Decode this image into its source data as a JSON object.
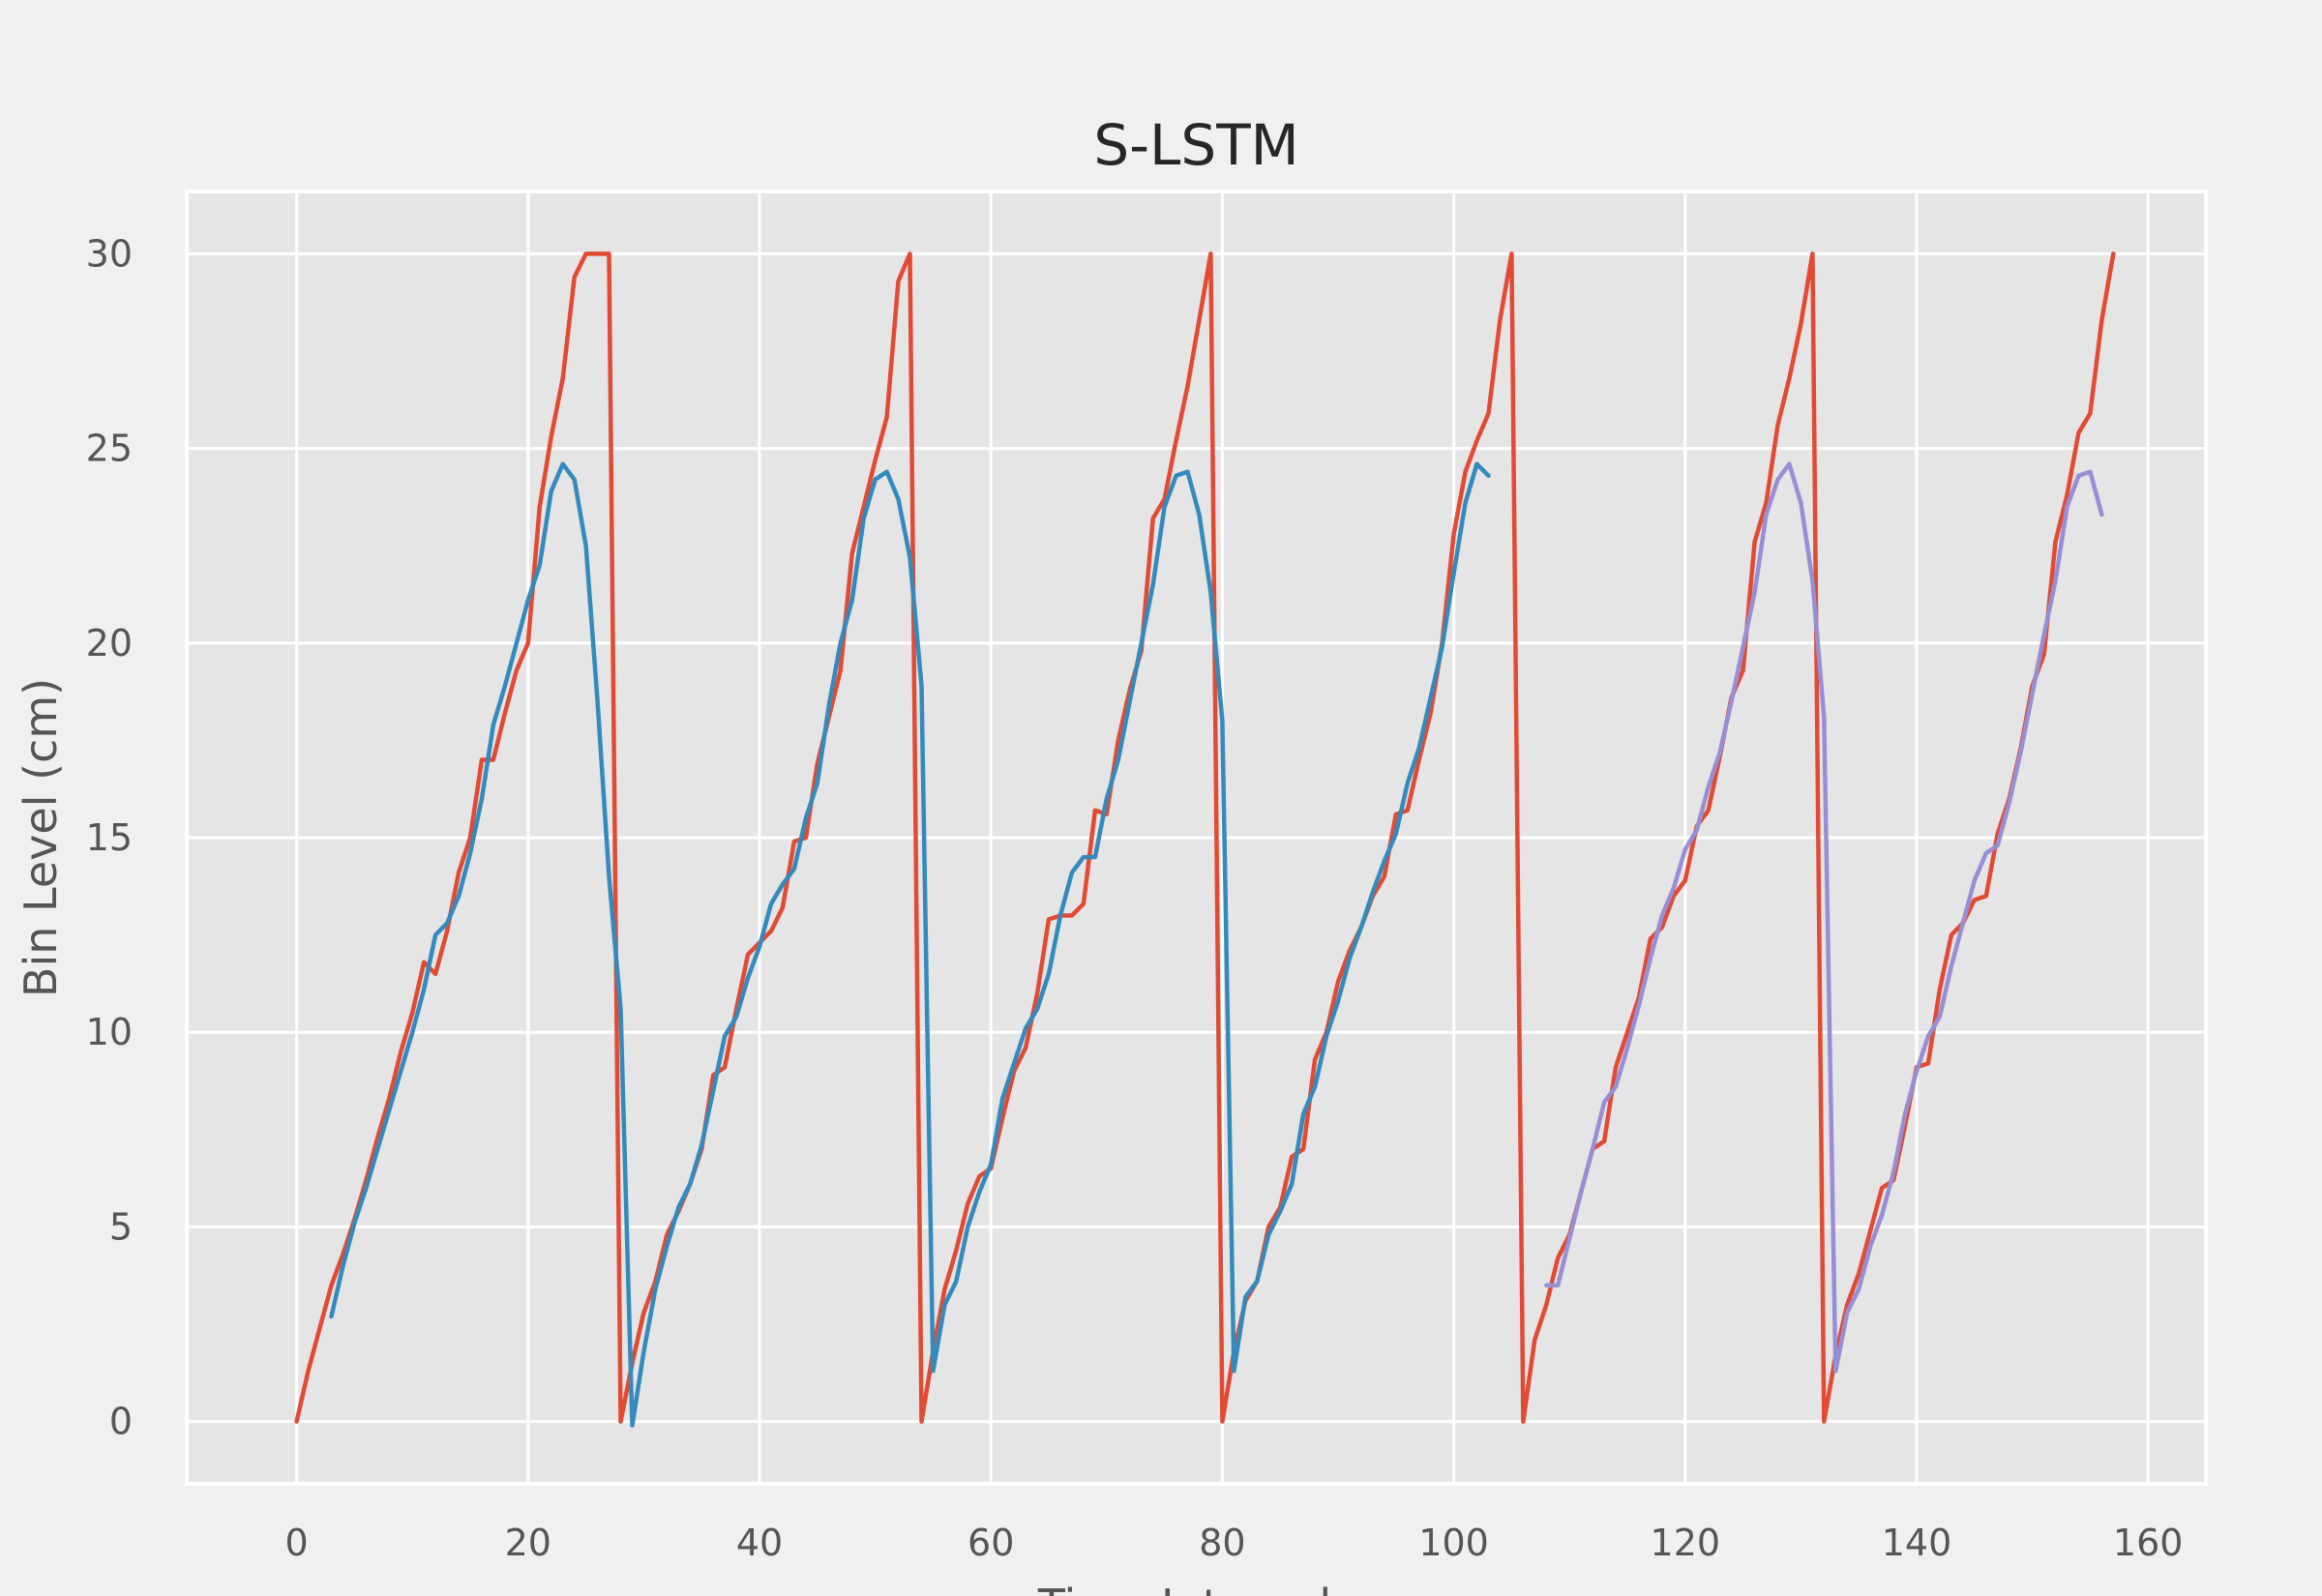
{
  "chart_data": {
    "type": "line",
    "title": "S-LSTM",
    "xlabel": "Time Intervals",
    "ylabel": "Bin Level (cm)",
    "xlim": [
      -9.5,
      165
    ],
    "ylim": [
      -1.6,
      31.6
    ],
    "xticks": [
      0,
      20,
      40,
      60,
      80,
      100,
      120,
      140,
      160
    ],
    "yticks": [
      0,
      5,
      10,
      15,
      20,
      25,
      30
    ],
    "grid": true,
    "legend": "none",
    "series": [
      {
        "color": "#e24a33",
        "points": [
          [
            0,
            0
          ],
          [
            1,
            1.3
          ],
          [
            2,
            2.4
          ],
          [
            3,
            3.5
          ],
          [
            4,
            4.3
          ],
          [
            5,
            5.2
          ],
          [
            6,
            6.2
          ],
          [
            7,
            7.3
          ],
          [
            8,
            8.3
          ],
          [
            9,
            9.5
          ],
          [
            10,
            10.5
          ],
          [
            11,
            11.8
          ],
          [
            12,
            11.5
          ],
          [
            13,
            12.6
          ],
          [
            14,
            14.1
          ],
          [
            15,
            15.0
          ],
          [
            16,
            17.0
          ],
          [
            17,
            17.0
          ],
          [
            18,
            18.2
          ],
          [
            19,
            19.3
          ],
          [
            20,
            20.0
          ],
          [
            21,
            23.5
          ],
          [
            22,
            25.3
          ],
          [
            23,
            26.8
          ],
          [
            24,
            29.4
          ],
          [
            25,
            30.0
          ],
          [
            26,
            30.0
          ],
          [
            27,
            30.0
          ],
          [
            28,
            0
          ],
          [
            29,
            1.5
          ],
          [
            30,
            2.8
          ],
          [
            31,
            3.6
          ],
          [
            32,
            4.8
          ],
          [
            33,
            5.4
          ],
          [
            34,
            6.1
          ],
          [
            35,
            7.0
          ],
          [
            36,
            8.9
          ],
          [
            37,
            9.1
          ],
          [
            38,
            10.6
          ],
          [
            39,
            12.0
          ],
          [
            40,
            12.3
          ],
          [
            41,
            12.6
          ],
          [
            42,
            13.2
          ],
          [
            43,
            14.9
          ],
          [
            44,
            15.0
          ],
          [
            45,
            16.9
          ],
          [
            46,
            18.1
          ],
          [
            47,
            19.3
          ],
          [
            48,
            22.3
          ],
          [
            49,
            23.5
          ],
          [
            50,
            24.7
          ],
          [
            51,
            25.8
          ],
          [
            52,
            29.3
          ],
          [
            53,
            30.0
          ],
          [
            54,
            0
          ],
          [
            55,
            1.8
          ],
          [
            56,
            3.4
          ],
          [
            57,
            4.4
          ],
          [
            58,
            5.6
          ],
          [
            59,
            6.3
          ],
          [
            60,
            6.5
          ],
          [
            61,
            7.8
          ],
          [
            62,
            9.0
          ],
          [
            63,
            9.6
          ],
          [
            64,
            11.0
          ],
          [
            65,
            12.9
          ],
          [
            66,
            13.0
          ],
          [
            67,
            13.0
          ],
          [
            68,
            13.3
          ],
          [
            69,
            15.7
          ],
          [
            70,
            15.6
          ],
          [
            71,
            17.5
          ],
          [
            72,
            18.8
          ],
          [
            73,
            19.8
          ],
          [
            74,
            23.2
          ],
          [
            75,
            23.7
          ],
          [
            76,
            25.2
          ],
          [
            77,
            26.6
          ],
          [
            78,
            28.3
          ],
          [
            79,
            30.0
          ],
          [
            80,
            0
          ],
          [
            81,
            1.8
          ],
          [
            82,
            3.1
          ],
          [
            83,
            3.6
          ],
          [
            84,
            5.0
          ],
          [
            85,
            5.5
          ],
          [
            86,
            6.8
          ],
          [
            87,
            7.0
          ],
          [
            88,
            9.3
          ],
          [
            89,
            10.0
          ],
          [
            90,
            11.3
          ],
          [
            91,
            12.1
          ],
          [
            92,
            12.7
          ],
          [
            93,
            13.5
          ],
          [
            94,
            14.0
          ],
          [
            95,
            15.6
          ],
          [
            96,
            15.7
          ],
          [
            97,
            17.0
          ],
          [
            98,
            18.2
          ],
          [
            99,
            20.0
          ],
          [
            100,
            22.8
          ],
          [
            101,
            24.4
          ],
          [
            102,
            25.2
          ],
          [
            103,
            25.9
          ],
          [
            104,
            28.3
          ],
          [
            105,
            30.0
          ],
          [
            106,
            0
          ],
          [
            107,
            2.1
          ],
          [
            108,
            3.0
          ],
          [
            109,
            4.2
          ],
          [
            110,
            4.8
          ],
          [
            111,
            5.9
          ],
          [
            112,
            7.0
          ],
          [
            113,
            7.2
          ],
          [
            114,
            9.1
          ],
          [
            115,
            10.0
          ],
          [
            116,
            10.9
          ],
          [
            117,
            12.4
          ],
          [
            118,
            12.7
          ],
          [
            119,
            13.5
          ],
          [
            120,
            13.9
          ],
          [
            121,
            15.3
          ],
          [
            122,
            15.7
          ],
          [
            123,
            17.1
          ],
          [
            124,
            18.6
          ],
          [
            125,
            19.3
          ],
          [
            126,
            22.6
          ],
          [
            127,
            23.6
          ],
          [
            128,
            25.6
          ],
          [
            129,
            26.8
          ],
          [
            130,
            28.2
          ],
          [
            131,
            30.0
          ],
          [
            132,
            0
          ],
          [
            133,
            1.7
          ],
          [
            134,
            3.0
          ],
          [
            135,
            3.8
          ],
          [
            136,
            4.9
          ],
          [
            137,
            6.0
          ],
          [
            138,
            6.2
          ],
          [
            139,
            7.6
          ],
          [
            140,
            9.1
          ],
          [
            141,
            9.2
          ],
          [
            142,
            11.1
          ],
          [
            143,
            12.5
          ],
          [
            144,
            12.8
          ],
          [
            145,
            13.4
          ],
          [
            146,
            13.5
          ],
          [
            147,
            15.1
          ],
          [
            148,
            16.0
          ],
          [
            149,
            17.3
          ],
          [
            150,
            18.9
          ],
          [
            151,
            19.7
          ],
          [
            152,
            22.6
          ],
          [
            153,
            23.8
          ],
          [
            154,
            25.4
          ],
          [
            155,
            25.9
          ],
          [
            156,
            28.3
          ],
          [
            157,
            30.0
          ]
        ]
      },
      {
        "color": "#348abd",
        "points": [
          [
            3,
            2.7
          ],
          [
            4,
            4.0
          ],
          [
            5,
            5.1
          ],
          [
            6,
            6.0
          ],
          [
            7,
            7.0
          ],
          [
            8,
            8.0
          ],
          [
            9,
            9.0
          ],
          [
            10,
            10.0
          ],
          [
            11,
            11.1
          ],
          [
            12,
            12.5
          ],
          [
            13,
            12.8
          ],
          [
            14,
            13.5
          ],
          [
            15,
            14.6
          ],
          [
            16,
            16.0
          ],
          [
            17,
            17.9
          ],
          [
            18,
            18.9
          ],
          [
            19,
            20.0
          ],
          [
            20,
            21.1
          ],
          [
            21,
            22.0
          ],
          [
            22,
            23.9
          ],
          [
            23,
            24.6
          ],
          [
            24,
            24.2
          ],
          [
            25,
            22.5
          ],
          [
            26,
            18.5
          ],
          [
            27,
            14.0
          ],
          [
            28,
            10.6
          ],
          [
            29,
            -0.1
          ],
          [
            30,
            1.8
          ],
          [
            31,
            3.4
          ],
          [
            32,
            4.5
          ],
          [
            33,
            5.5
          ],
          [
            34,
            6.1
          ],
          [
            35,
            7.1
          ],
          [
            36,
            8.5
          ],
          [
            37,
            9.9
          ],
          [
            38,
            10.4
          ],
          [
            39,
            11.4
          ],
          [
            40,
            12.2
          ],
          [
            41,
            13.3
          ],
          [
            42,
            13.8
          ],
          [
            43,
            14.2
          ],
          [
            44,
            15.5
          ],
          [
            45,
            16.4
          ],
          [
            46,
            18.4
          ],
          [
            47,
            20.0
          ],
          [
            48,
            21.1
          ],
          [
            49,
            23.2
          ],
          [
            50,
            24.2
          ],
          [
            51,
            24.4
          ],
          [
            52,
            23.7
          ],
          [
            53,
            22.2
          ],
          [
            54,
            18.9
          ],
          [
            55,
            1.3
          ],
          [
            56,
            3.0
          ],
          [
            57,
            3.6
          ],
          [
            58,
            5.0
          ],
          [
            59,
            5.9
          ],
          [
            60,
            6.6
          ],
          [
            61,
            8.3
          ],
          [
            62,
            9.2
          ],
          [
            63,
            10.1
          ],
          [
            64,
            10.6
          ],
          [
            65,
            11.5
          ],
          [
            66,
            13.0
          ],
          [
            67,
            14.1
          ],
          [
            68,
            14.5
          ],
          [
            69,
            14.5
          ],
          [
            70,
            16.0
          ],
          [
            71,
            17.0
          ],
          [
            72,
            18.5
          ],
          [
            73,
            20.0
          ],
          [
            74,
            21.5
          ],
          [
            75,
            23.5
          ],
          [
            76,
            24.3
          ],
          [
            77,
            24.4
          ],
          [
            78,
            23.3
          ],
          [
            79,
            21.3
          ],
          [
            80,
            18.0
          ],
          [
            81,
            1.3
          ],
          [
            82,
            3.2
          ],
          [
            83,
            3.6
          ],
          [
            84,
            4.8
          ],
          [
            85,
            5.4
          ],
          [
            86,
            6.1
          ],
          [
            87,
            7.9
          ],
          [
            88,
            8.6
          ],
          [
            89,
            9.9
          ],
          [
            90,
            10.8
          ],
          [
            91,
            11.9
          ],
          [
            92,
            12.7
          ],
          [
            93,
            13.6
          ],
          [
            94,
            14.4
          ],
          [
            95,
            15.1
          ],
          [
            96,
            16.4
          ],
          [
            97,
            17.3
          ],
          [
            98,
            18.6
          ],
          [
            99,
            19.9
          ],
          [
            100,
            21.8
          ],
          [
            101,
            23.6
          ],
          [
            102,
            24.6
          ],
          [
            103,
            24.3
          ]
        ]
      },
      {
        "color": "#988ed5",
        "points": [
          [
            108,
            3.5
          ],
          [
            109,
            3.5
          ],
          [
            110,
            4.7
          ],
          [
            111,
            5.9
          ],
          [
            112,
            7.0
          ],
          [
            113,
            8.2
          ],
          [
            114,
            8.6
          ],
          [
            115,
            9.6
          ],
          [
            116,
            10.7
          ],
          [
            117,
            11.9
          ],
          [
            118,
            13.0
          ],
          [
            119,
            13.7
          ],
          [
            120,
            14.7
          ],
          [
            121,
            15.2
          ],
          [
            122,
            16.3
          ],
          [
            123,
            17.2
          ],
          [
            124,
            18.5
          ],
          [
            125,
            19.9
          ],
          [
            126,
            21.3
          ],
          [
            127,
            23.3
          ],
          [
            128,
            24.2
          ],
          [
            129,
            24.6
          ],
          [
            130,
            23.6
          ],
          [
            131,
            21.6
          ],
          [
            132,
            18.1
          ],
          [
            133,
            1.3
          ],
          [
            134,
            2.8
          ],
          [
            135,
            3.4
          ],
          [
            136,
            4.5
          ],
          [
            137,
            5.3
          ],
          [
            138,
            6.4
          ],
          [
            139,
            7.9
          ],
          [
            140,
            9.0
          ],
          [
            141,
            9.9
          ],
          [
            142,
            10.4
          ],
          [
            143,
            11.7
          ],
          [
            144,
            12.8
          ],
          [
            145,
            13.9
          ],
          [
            146,
            14.6
          ],
          [
            147,
            14.8
          ],
          [
            148,
            15.9
          ],
          [
            149,
            17.2
          ],
          [
            150,
            18.7
          ],
          [
            151,
            20.2
          ],
          [
            152,
            21.6
          ],
          [
            153,
            23.5
          ],
          [
            154,
            24.3
          ],
          [
            155,
            24.4
          ],
          [
            156,
            23.3
          ]
        ]
      }
    ]
  }
}
